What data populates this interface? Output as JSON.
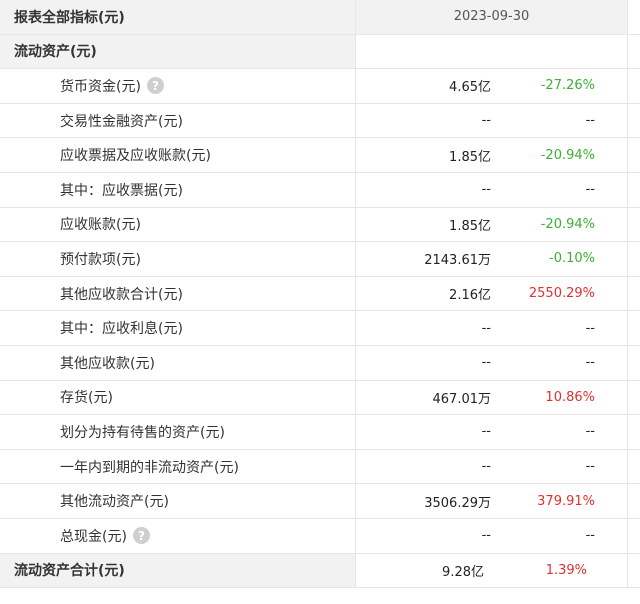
{
  "header": {
    "title": "报表全部指标(元)",
    "date": "2023-09-30"
  },
  "section_title": "流动资产(元)",
  "rows": [
    {
      "label": "货币资金(元)",
      "value": "4.65亿",
      "change": "-27.26%",
      "trend": "neg",
      "help": true
    },
    {
      "label": "交易性金融资产(元)",
      "value": "--",
      "change": "--",
      "trend": "none",
      "help": false
    },
    {
      "label": "应收票据及应收账款(元)",
      "value": "1.85亿",
      "change": "-20.94%",
      "trend": "neg",
      "help": false
    },
    {
      "label": "其中：应收票据(元)",
      "value": "--",
      "change": "--",
      "trend": "none",
      "help": false
    },
    {
      "label": "应收账款(元)",
      "value": "1.85亿",
      "change": "-20.94%",
      "trend": "neg",
      "help": false
    },
    {
      "label": "预付款项(元)",
      "value": "2143.61万",
      "change": "-0.10%",
      "trend": "neg",
      "help": false
    },
    {
      "label": "其他应收款合计(元)",
      "value": "2.16亿",
      "change": "2550.29%",
      "trend": "pos",
      "help": false
    },
    {
      "label": "其中：应收利息(元)",
      "value": "--",
      "change": "--",
      "trend": "none",
      "help": false
    },
    {
      "label": "其他应收款(元)",
      "value": "--",
      "change": "--",
      "trend": "none",
      "help": false
    },
    {
      "label": "存货(元)",
      "value": "467.01万",
      "change": "10.86%",
      "trend": "pos",
      "help": false
    },
    {
      "label": "划分为持有待售的资产(元)",
      "value": "--",
      "change": "--",
      "trend": "none",
      "help": false
    },
    {
      "label": "一年内到期的非流动资产(元)",
      "value": "--",
      "change": "--",
      "trend": "none",
      "help": false
    },
    {
      "label": "其他流动资产(元)",
      "value": "3506.29万",
      "change": "379.91%",
      "trend": "pos",
      "help": false
    },
    {
      "label": "总现金(元)",
      "value": "--",
      "change": "--",
      "trend": "none",
      "help": true
    }
  ],
  "total": {
    "label": "流动资产合计(元)",
    "value": "9.28亿",
    "change": "1.39%",
    "trend": "pos"
  },
  "icons": {
    "help": "question-circle-icon",
    "help_glyph": "?"
  },
  "colors": {
    "negative": "#3fae35",
    "positive": "#e03131",
    "header_bg": "#f2f2f2"
  }
}
